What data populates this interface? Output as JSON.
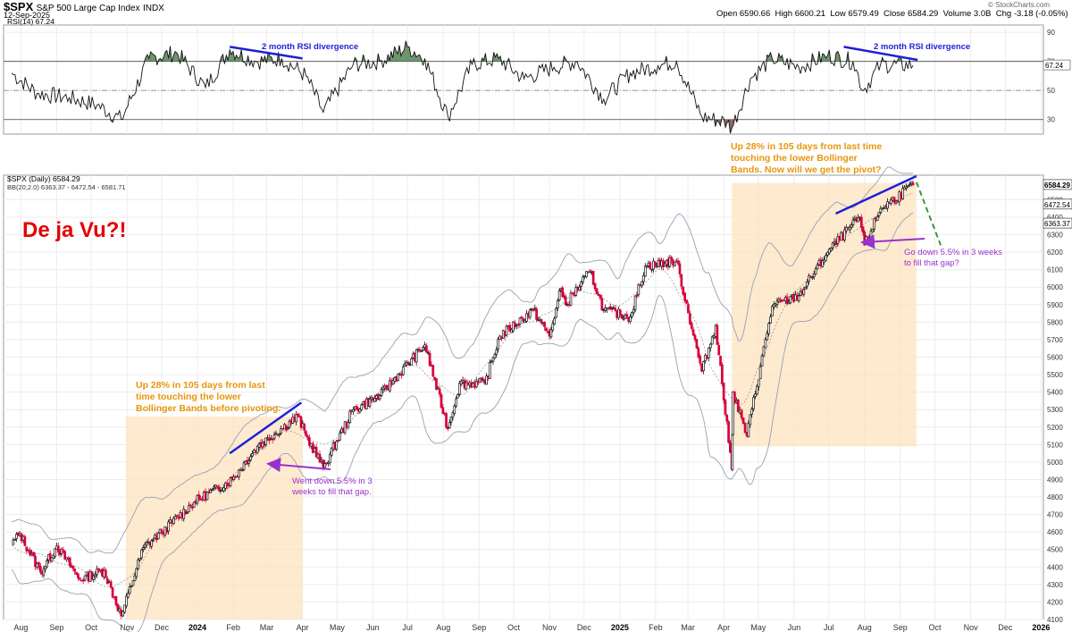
{
  "header": {
    "symbol": "$SPX",
    "name": "S&P 500 Large Cap Index",
    "exchange": "INDX",
    "date": "12-Sep-2025",
    "open_label": "Open",
    "open": "6590.66",
    "high_label": "High",
    "high": "6600.21",
    "low_label": "Low",
    "low": "6579.49",
    "close_label": "Close",
    "close": "6584.29",
    "volume_label": "Volume",
    "volume": "3.0B",
    "chg_label": "Chg",
    "chg": "-3.18 (-0.05%)",
    "copyright": "© StockCharts.com"
  },
  "chart_data": [
    {
      "type": "line",
      "panel": "RSI",
      "legend": "RSI(14) 67.24",
      "ylim": [
        20,
        95
      ],
      "ticks": [
        30,
        50,
        70,
        90
      ],
      "reference_lines": [
        30,
        50,
        70
      ],
      "last_value_label": "67.24",
      "x": [
        "2023-07-24",
        "2023-08-15",
        "2023-09-12",
        "2023-10-06",
        "2023-10-27",
        "2023-11-20",
        "2023-12-14",
        "2024-01-08",
        "2024-01-29",
        "2024-02-21",
        "2024-03-14",
        "2024-04-04",
        "2024-04-19",
        "2024-05-15",
        "2024-06-07",
        "2024-07-01",
        "2024-07-16",
        "2024-08-05",
        "2024-08-26",
        "2024-09-18",
        "2024-10-10",
        "2024-11-05",
        "2024-11-25",
        "2024-12-18",
        "2025-01-10",
        "2025-02-03",
        "2025-02-19",
        "2025-03-13",
        "2025-04-04",
        "2025-04-08",
        "2025-04-24",
        "2025-05-13",
        "2025-06-05",
        "2025-06-30",
        "2025-07-22",
        "2025-07-31",
        "2025-08-15",
        "2025-09-12"
      ],
      "values": [
        62,
        48,
        45,
        40,
        30,
        72,
        76,
        52,
        78,
        70,
        72,
        60,
        35,
        68,
        70,
        80,
        72,
        32,
        68,
        72,
        58,
        66,
        70,
        44,
        62,
        67,
        70,
        32,
        28,
        24,
        58,
        72,
        66,
        74,
        70,
        50,
        68,
        67.24
      ]
    },
    {
      "type": "candlestick",
      "panel": "Price",
      "legend": "$SPX (Daily) 6584.29",
      "overlay_legend": "BB(20,2.0) 6363.37 - 6472.54 - 6581.71",
      "ylim": [
        4100,
        6640
      ],
      "y_ticks": [
        4100,
        4200,
        4300,
        4400,
        4500,
        4600,
        4700,
        4800,
        4900,
        5000,
        5100,
        5200,
        5300,
        5400,
        5500,
        5600,
        5700,
        5800,
        5900,
        6000,
        6100,
        6200,
        6300,
        6400,
        6500
      ],
      "x_tick_labels": [
        {
          "date": "2023-08-01",
          "label": "Aug"
        },
        {
          "date": "2023-09-01",
          "label": "Sep"
        },
        {
          "date": "2023-10-01",
          "label": "Oct"
        },
        {
          "date": "2023-11-01",
          "label": "Nov"
        },
        {
          "date": "2023-12-01",
          "label": "Dec"
        },
        {
          "date": "2024-01-01",
          "label": "2024"
        },
        {
          "date": "2024-02-01",
          "label": "Feb"
        },
        {
          "date": "2024-03-01",
          "label": "Mar"
        },
        {
          "date": "2024-04-01",
          "label": "Apr"
        },
        {
          "date": "2024-05-01",
          "label": "May"
        },
        {
          "date": "2024-06-01",
          "label": "Jun"
        },
        {
          "date": "2024-07-01",
          "label": "Jul"
        },
        {
          "date": "2024-08-01",
          "label": "Aug"
        },
        {
          "date": "2024-09-01",
          "label": "Sep"
        },
        {
          "date": "2024-10-01",
          "label": "Oct"
        },
        {
          "date": "2024-11-01",
          "label": "Nov"
        },
        {
          "date": "2024-12-01",
          "label": "Dec"
        },
        {
          "date": "2025-01-01",
          "label": "2025"
        },
        {
          "date": "2025-02-01",
          "label": "Feb"
        },
        {
          "date": "2025-03-01",
          "label": "Mar"
        },
        {
          "date": "2025-04-01",
          "label": "Apr"
        },
        {
          "date": "2025-05-01",
          "label": "May"
        },
        {
          "date": "2025-06-01",
          "label": "Jun"
        },
        {
          "date": "2025-07-01",
          "label": "Jul"
        },
        {
          "date": "2025-08-01",
          "label": "Aug"
        },
        {
          "date": "2025-09-01",
          "label": "Sep"
        },
        {
          "date": "2025-10-01",
          "label": "Oct"
        },
        {
          "date": "2025-11-01",
          "label": "Nov"
        },
        {
          "date": "2025-12-01",
          "label": "Dec"
        },
        {
          "date": "2026-01-01",
          "label": "2026"
        }
      ],
      "last_value_labels": [
        "6584.29",
        "6472.54",
        "6363.37"
      ],
      "close_path": {
        "x": [
          "2023-07-24",
          "2023-07-31",
          "2023-08-18",
          "2023-09-01",
          "2023-09-21",
          "2023-10-12",
          "2023-10-27",
          "2023-11-15",
          "2023-12-01",
          "2023-12-29",
          "2024-01-31",
          "2024-02-22",
          "2024-03-28",
          "2024-04-04",
          "2024-04-19",
          "2024-05-15",
          "2024-06-07",
          "2024-07-16",
          "2024-08-05",
          "2024-08-15",
          "2024-09-06",
          "2024-09-19",
          "2024-10-18",
          "2024-11-01",
          "2024-11-11",
          "2024-11-15",
          "2024-12-06",
          "2024-12-18",
          "2025-01-10",
          "2025-01-23",
          "2025-02-19",
          "2025-03-13",
          "2025-03-25",
          "2025-04-08",
          "2025-04-09",
          "2025-04-21",
          "2025-05-13",
          "2025-06-05",
          "2025-06-30",
          "2025-07-28",
          "2025-08-01",
          "2025-08-15",
          "2025-09-12"
        ],
        "y": [
          4530,
          4590,
          4370,
          4520,
          4330,
          4380,
          4120,
          4510,
          4600,
          4770,
          4900,
          5090,
          5260,
          5150,
          4970,
          5300,
          5380,
          5670,
          5190,
          5450,
          5450,
          5720,
          5870,
          5720,
          5990,
          5900,
          6090,
          5870,
          5830,
          6120,
          6150,
          5520,
          5780,
          4960,
          5400,
          5150,
          5890,
          5950,
          6200,
          6400,
          6240,
          6450,
          6584.29
        ]
      },
      "bollinger": {
        "upper_end": 6581.71,
        "middle_end": 6472.54,
        "lower_end": 6363.37
      },
      "annotations": [
        {
          "text": "De ja Vu?!"
        },
        {
          "text": "Up 28% in 105 days from last time touching the lower Bollinger Bands before pivoting."
        },
        {
          "text": "Went down 5.5% in 3 weeks to fill that gap."
        },
        {
          "text": "Up 28% in 105 days from last time touching the lower Bollinger Bands. Now will we get the pivot?"
        },
        {
          "text": "Go down 5.5% in 3 weeks to fill that gap?"
        },
        {
          "text": "2 month RSI divergence"
        },
        {
          "text": "2 month RSI divergence"
        }
      ]
    }
  ],
  "annotation_text": {
    "deja_vu": "De ja Vu?!",
    "left_box": [
      "Up 28% in 105 days from last",
      "time touching the lower",
      "Bollinger Bands before pivoting."
    ],
    "left_arrow": [
      "Went down 5.5% in 3",
      "weeks to fill that gap."
    ],
    "right_box": [
      "Up 28% in 105 days from last time",
      "touching the lower Bollinger",
      "Bands. Now will we get the pivot?"
    ],
    "right_arrow": [
      "Go down 5.5% in 3 weeks",
      "to fill that gap?"
    ],
    "rsi_div_left": "2 month RSI divergence",
    "rsi_div_right": "2 month RSI divergence"
  },
  "colors": {
    "orange_text": "#e8960c",
    "purple": "#9932cc",
    "red": "#e60000",
    "blue": "#1f1fd6",
    "green_dash": "#2e8b2e",
    "box_fill": "#fde3bf",
    "up_candle": "#111111",
    "down_candle": "#d6003c",
    "rsi_fill": "#5f8a5f",
    "bb_line": "#9aa0b5",
    "bb_mid": "#8c8c8c"
  }
}
